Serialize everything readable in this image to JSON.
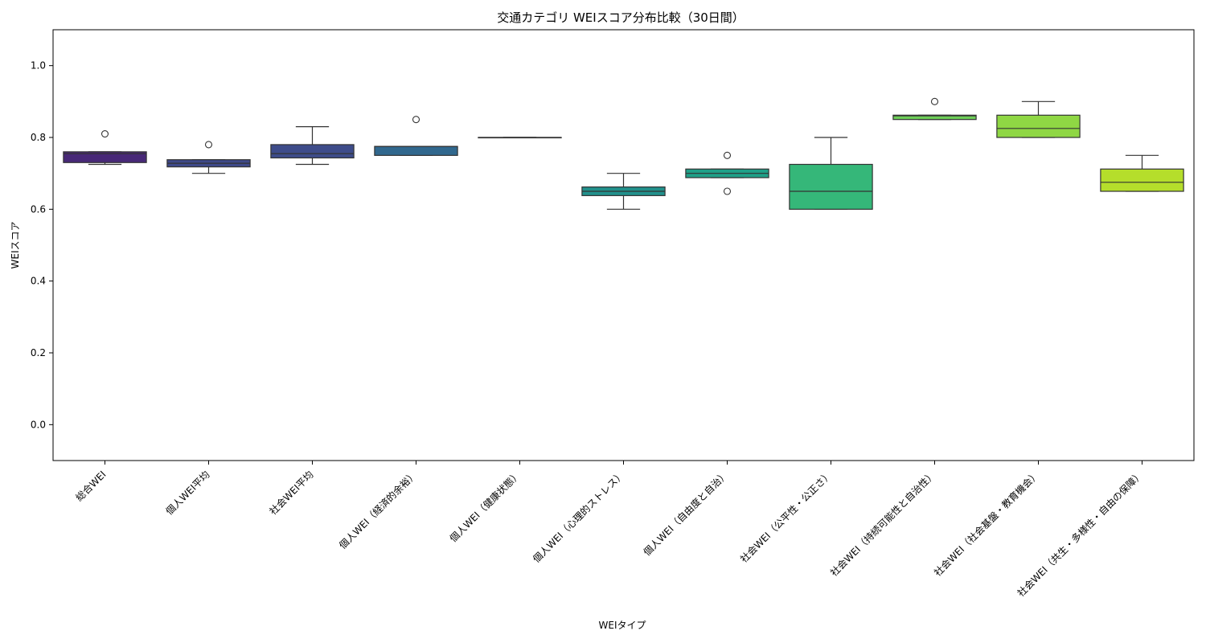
{
  "chart_data": {
    "type": "box",
    "title": "交通カテゴリ WEIスコア分布比較（30日間）",
    "xlabel": "WEIタイプ",
    "ylabel": "WEIスコア",
    "ylim": [
      -0.1,
      1.1
    ],
    "yticks": [
      "0.0",
      "0.2",
      "0.4",
      "0.6",
      "0.8",
      "1.0"
    ],
    "grid": false,
    "categories": [
      "総合WEI",
      "個人WEI平均",
      "社会WEI平均",
      "個人WEI（経済的余裕）",
      "個人WEI（健康状態）",
      "個人WEI（心理的ストレス）",
      "個人WEI（自由度と自治）",
      "社会WEI（公平性・公正さ）",
      "社会WEI（持続可能性と自治性）",
      "社会WEI（社会基盤・教育機会）",
      "社会WEI（共生・多様性・自由の保障）"
    ],
    "boxes": [
      {
        "whisker_low": 0.725,
        "q1": 0.73,
        "median": 0.755,
        "q3": 0.76,
        "whisker_high": 0.76,
        "outliers": [
          0.81
        ],
        "color": "#482878"
      },
      {
        "whisker_low": 0.7,
        "q1": 0.718,
        "median": 0.728,
        "q3": 0.738,
        "whisker_high": 0.738,
        "outliers": [
          0.78
        ],
        "color": "#3e4989"
      },
      {
        "whisker_low": 0.725,
        "q1": 0.743,
        "median": 0.755,
        "q3": 0.78,
        "whisker_high": 0.83,
        "outliers": [],
        "color": "#3e4c8a"
      },
      {
        "whisker_low": 0.75,
        "q1": 0.75,
        "median": 0.775,
        "q3": 0.775,
        "whisker_high": 0.775,
        "outliers": [
          0.85
        ],
        "color": "#31688e"
      },
      {
        "whisker_low": 0.8,
        "q1": 0.8,
        "median": 0.8,
        "q3": 0.8,
        "whisker_high": 0.8,
        "outliers": [],
        "color": "#2a788e"
      },
      {
        "whisker_low": 0.6,
        "q1": 0.638,
        "median": 0.65,
        "q3": 0.662,
        "whisker_high": 0.7,
        "outliers": [],
        "color": "#21918c"
      },
      {
        "whisker_low": 0.688,
        "q1": 0.688,
        "median": 0.7,
        "q3": 0.712,
        "whisker_high": 0.712,
        "outliers": [
          0.75,
          0.65
        ],
        "color": "#1fa088"
      },
      {
        "whisker_low": 0.6,
        "q1": 0.6,
        "median": 0.65,
        "q3": 0.725,
        "whisker_high": 0.8,
        "outliers": [],
        "color": "#35b779"
      },
      {
        "whisker_low": 0.85,
        "q1": 0.85,
        "median": 0.86,
        "q3": 0.862,
        "whisker_high": 0.862,
        "outliers": [
          0.9
        ],
        "color": "#6ece58"
      },
      {
        "whisker_low": 0.8,
        "q1": 0.8,
        "median": 0.825,
        "q3": 0.862,
        "whisker_high": 0.9,
        "outliers": [],
        "color": "#8fd744"
      },
      {
        "whisker_low": 0.65,
        "q1": 0.65,
        "median": 0.675,
        "q3": 0.712,
        "whisker_high": 0.75,
        "outliers": [],
        "color": "#b5de2b"
      }
    ]
  }
}
